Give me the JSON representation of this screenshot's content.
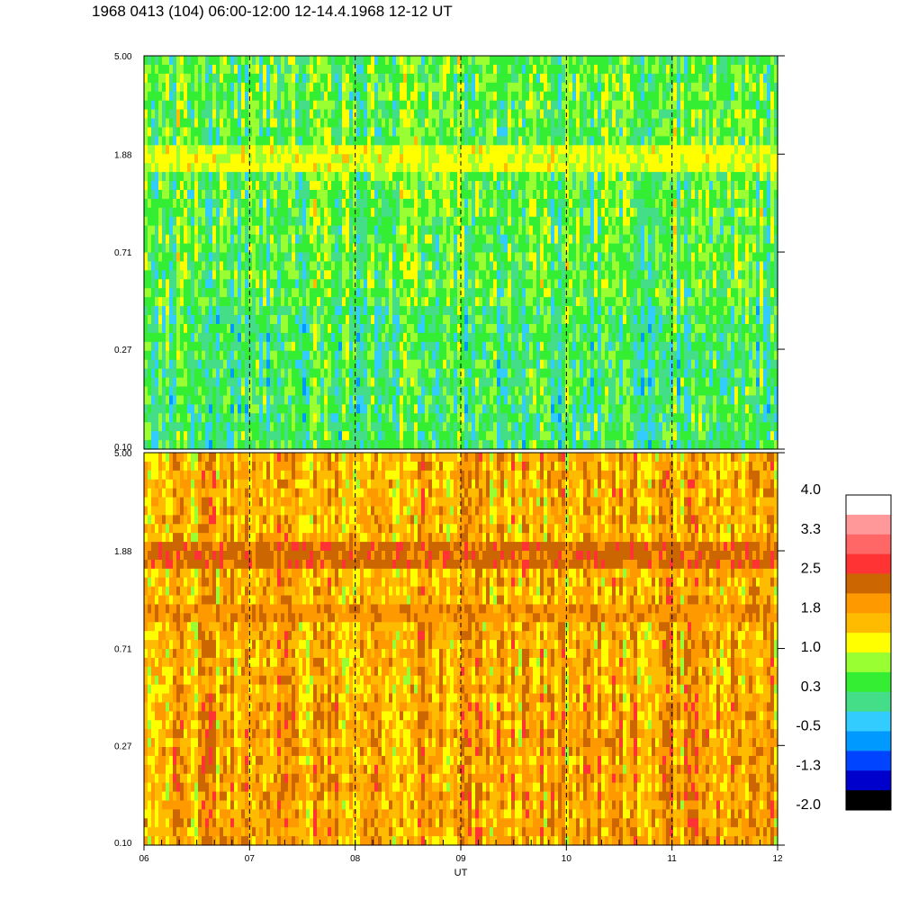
{
  "title": "1968 0413 (104) 06:00-12:00 12-14.4.1968  12-12 UT",
  "chart_data": [
    {
      "type": "heatmap",
      "panel": "upper",
      "title": "",
      "xlabel": "",
      "ylabel": "",
      "y_scale": "log",
      "ylim": [
        0.1,
        5.0
      ],
      "y_tick_labels": [
        "5.00",
        "1.88",
        "0.71",
        "0.27",
        "0.10"
      ],
      "y_ticks": [
        5.0,
        1.88,
        0.71,
        0.27,
        0.1
      ],
      "xlim": [
        6,
        12
      ],
      "dashed_vertical_lines_at": [
        7,
        8,
        9,
        10,
        11
      ],
      "bands": [
        {
          "y_low": 1.6,
          "y_high": 2.1,
          "level": 1.1
        },
        {
          "y_low": 4.4,
          "y_high": 4.7,
          "level": 1.2
        }
      ],
      "dominant_level": 0.5
    },
    {
      "type": "heatmap",
      "panel": "lower",
      "title": "",
      "xlabel": "UT",
      "ylabel": "",
      "y_scale": "log",
      "ylim": [
        0.1,
        5.0
      ],
      "y_tick_labels": [
        "5.00",
        "1.88",
        "0.71",
        "0.27",
        "0.10"
      ],
      "y_ticks": [
        5.0,
        1.88,
        0.71,
        0.27,
        0.1
      ],
      "xlim": [
        6,
        12
      ],
      "x_tick_labels": [
        "06",
        "07",
        "08",
        "09",
        "10",
        "11",
        "12"
      ],
      "x_ticks": [
        6,
        7,
        8,
        9,
        10,
        11,
        12
      ],
      "dashed_vertical_lines_at": [
        7,
        8,
        9,
        10,
        11
      ],
      "bands": [
        {
          "y_low": 1.6,
          "y_high": 2.1,
          "level": 2.3
        },
        {
          "y_low": 0.9,
          "y_high": 1.15,
          "level": 2.0
        }
      ],
      "dominant_level": 1.7
    }
  ],
  "colorbar": {
    "tick_labels": [
      "4.0",
      "3.3",
      "2.5",
      "1.8",
      "1.0",
      "0.3",
      "-0.5",
      "-1.3",
      "-2.0"
    ],
    "min": -2.0,
    "max": 4.0,
    "colors_top_to_bottom": [
      "#ffffff",
      "#ff9999",
      "#ff6666",
      "#ff3333",
      "#cc6600",
      "#ff9900",
      "#ffbb00",
      "#ffff00",
      "#99ff33",
      "#33ee33",
      "#44dd88",
      "#33ccff",
      "#0099ff",
      "#0044ff",
      "#0000cc",
      "#000000"
    ]
  }
}
